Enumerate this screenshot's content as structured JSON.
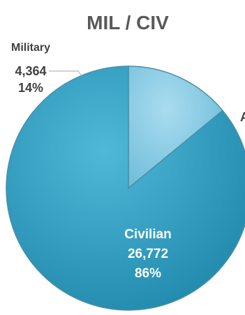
{
  "chart_data": {
    "type": "pie",
    "title": "MIL / CIV",
    "slices": [
      {
        "label": "Military",
        "value": 4364,
        "value_label": "4,364",
        "percent": 14,
        "percent_label": "14%",
        "color": "#8ccde6"
      },
      {
        "label": "Civilian",
        "value": 26772,
        "value_label": "26,772",
        "percent": 86,
        "percent_label": "86%",
        "color": "#2f9ec0"
      }
    ],
    "clipped_text": "A"
  }
}
